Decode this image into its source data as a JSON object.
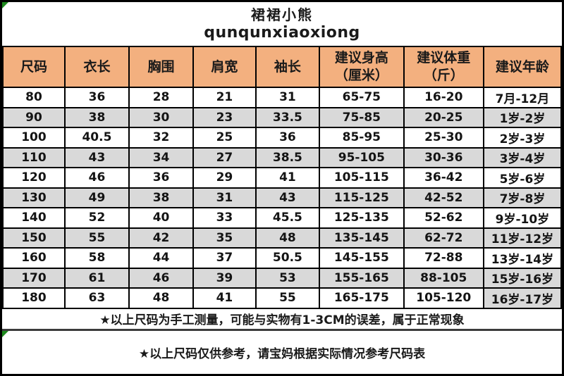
{
  "title": {
    "line1": "裙裙小熊",
    "line2": "qunqunxiaoxiong"
  },
  "colors": {
    "header_bg": "#F3B07F",
    "alt_row_bg": "#D9D9D9",
    "border": "#000000",
    "corner_flag_green": "#1E8A1E",
    "text": "#1A1A1A"
  },
  "table": {
    "headers": [
      "尺码",
      "衣长",
      "胸围",
      "肩宽",
      "袖长",
      "建议身高\n（厘米）",
      "建议体重\n（斤）",
      "建议年龄"
    ],
    "rows": [
      {
        "cells": [
          "80",
          "36",
          "28",
          "21",
          "31",
          "65-75",
          "16-20",
          "7月-12月"
        ],
        "shaded": false,
        "age_cell_shaded": false
      },
      {
        "cells": [
          "90",
          "38",
          "30",
          "23",
          "33.5",
          "75-85",
          "20-25",
          "1岁-2岁"
        ],
        "shaded": true,
        "age_cell_shaded": false
      },
      {
        "cells": [
          "100",
          "40.5",
          "32",
          "25",
          "36",
          "85-95",
          "25-30",
          "2岁-3岁"
        ],
        "shaded": false,
        "age_cell_shaded": false
      },
      {
        "cells": [
          "110",
          "43",
          "34",
          "27",
          "38.5",
          "95-105",
          "30-36",
          "3岁-4岁"
        ],
        "shaded": true,
        "age_cell_shaded": false
      },
      {
        "cells": [
          "120",
          "46",
          "36",
          "29",
          "41",
          "105-115",
          "36-42",
          "5岁-6岁"
        ],
        "shaded": false,
        "age_cell_shaded": false
      },
      {
        "cells": [
          "130",
          "49",
          "38",
          "31",
          "43",
          "115-125",
          "42-52",
          "7岁-8岁"
        ],
        "shaded": true,
        "age_cell_shaded": false
      },
      {
        "cells": [
          "140",
          "52",
          "40",
          "33",
          "45.5",
          "125-135",
          "52-62",
          "9岁-10岁"
        ],
        "shaded": false,
        "age_cell_shaded": false
      },
      {
        "cells": [
          "150",
          "55",
          "42",
          "35",
          "48",
          "135-145",
          "62-72",
          "11岁-12岁"
        ],
        "shaded": true,
        "age_cell_shaded": false
      },
      {
        "cells": [
          "160",
          "58",
          "44",
          "37",
          "50.5",
          "145-155",
          "72-88",
          "13岁-14岁"
        ],
        "shaded": false,
        "age_cell_shaded": false
      },
      {
        "cells": [
          "170",
          "61",
          "46",
          "39",
          "53",
          "155-165",
          "88-105",
          "15岁-16岁"
        ],
        "shaded": true,
        "age_cell_shaded": false
      },
      {
        "cells": [
          "180",
          "63",
          "48",
          "41",
          "55",
          "165-175",
          "105-120",
          "16岁-17岁"
        ],
        "shaded": false,
        "age_cell_shaded": true
      }
    ]
  },
  "footnotes": [
    "★以上尺码为手工测量，可能与实物有1-3CM的误差，属于正常现象",
    "★以上尺码仅供参考，请宝妈根据实际情况参考尺码表"
  ]
}
